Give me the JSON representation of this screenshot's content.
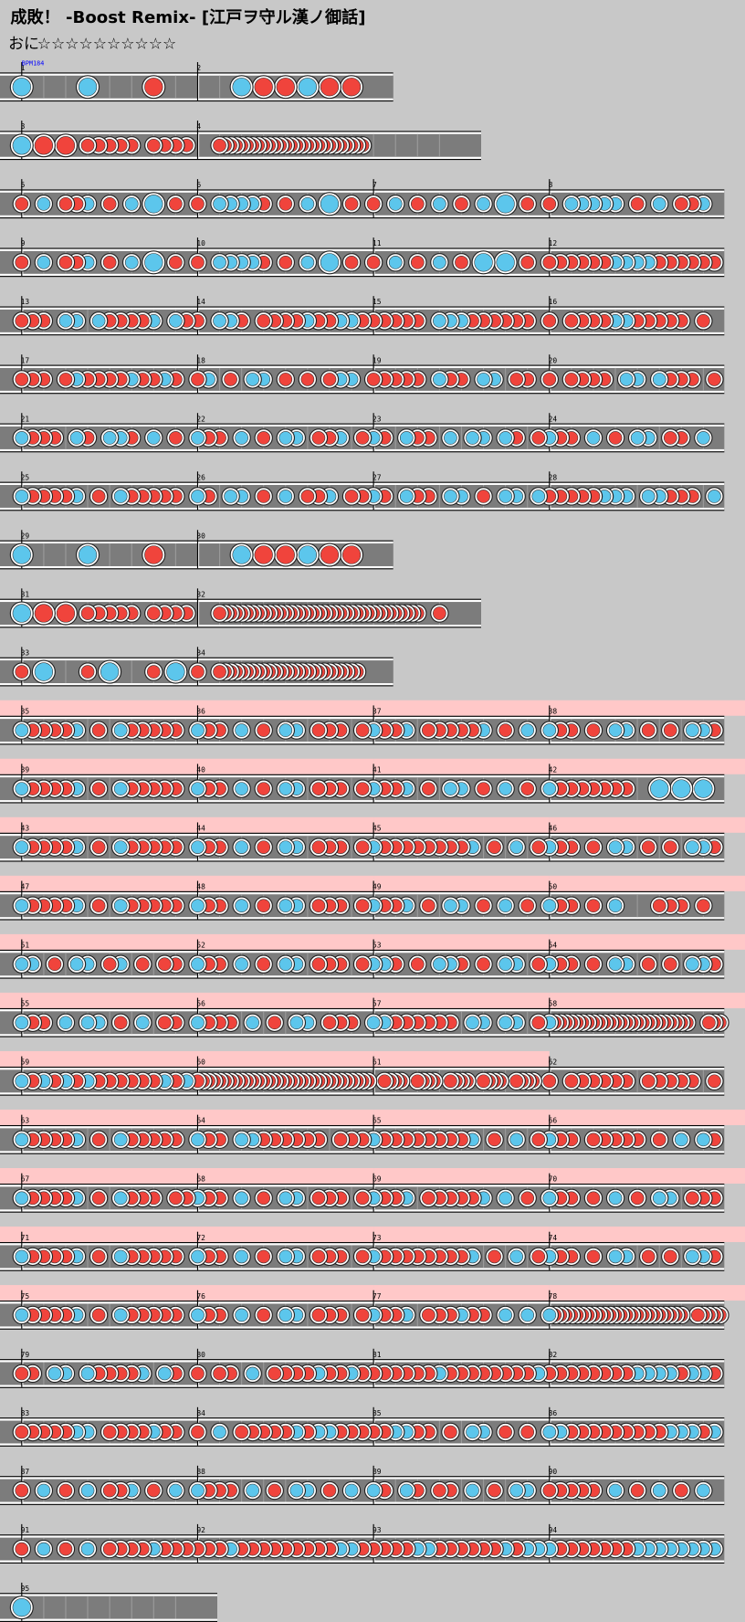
{
  "header": {
    "title": "成敗！ -Boost Remix- [江戸ヲ守ル漢ノ御話]",
    "course": "おに",
    "stars": "☆☆☆☆☆☆☆☆☆☆"
  },
  "rows": [
    {
      "measures": [
        {
          "number": "1",
          "bpm": "BPM184",
          "notes": "K..K..O."
        },
        {
          "number": "2",
          "notes": "..KOOKOO"
        }
      ]
    },
    {
      "measures": [
        {
          "number": "3",
          "notes": "K.O.O.ooooo.oooo"
        },
        {
          "number": "4",
          "beats": 6,
          "notes": "....ooooooooooooooooooooooooooo................."
        }
      ]
    },
    {
      "measures": [
        {
          "number": "5",
          "notes": "o.k.ook.o.k.K.o."
        },
        {
          "number": "6",
          "notes": "o.kkkko.o.k.K.o."
        },
        {
          "number": "7",
          "notes": "o.k.o.k.o.k.K.o."
        },
        {
          "number": "8",
          "notes": "o.kkkkk.o.k.ook."
        }
      ]
    },
    {
      "measures": [
        {
          "number": "9",
          "notes": "o.k.ook.o.k.K.o."
        },
        {
          "number": "10",
          "notes": "o.kkkko.o.k.K.o."
        },
        {
          "number": "11",
          "notes": "o.k.o.k.o.K.K.o."
        },
        {
          "number": "12",
          "notes": "ooooookkkkoooooo"
        }
      ]
    },
    {
      "measures": [
        {
          "number": "13",
          "notes": "ooo.kk.kooook.ko"
        },
        {
          "number": "14",
          "notes": "o.kko.ooookookko"
        },
        {
          "number": "15",
          "notes": "ooooo.kkkoooooo."
        },
        {
          "number": "16",
          "notes": "o.ooookkooooo.o."
        }
      ]
    },
    {
      "measures": [
        {
          "number": "17",
          "notes": "ooo.okooookooko."
        },
        {
          "number": "18",
          "notes": "ok.o.kk.o.o.okk."
        },
        {
          "number": "19",
          "notes": "ooooo.koo.kk.oo."
        },
        {
          "number": "20",
          "notes": "o.oooo.kk.kooo.o"
        }
      ]
    },
    {
      "measures": [
        {
          "number": "21",
          "notes": "kooo.ko.kko.k.o."
        },
        {
          "number": "22",
          "notes": "koo.k.o.kk.ook.o"
        },
        {
          "number": "23",
          "notes": "ko.koo.k.kk.ko.o"
        },
        {
          "number": "24",
          "notes": "koo.k.o.kk.oo.k."
        }
      ]
    },
    {
      "measures": [
        {
          "number": "25",
          "notes": "kooook.o.kooooo."
        },
        {
          "number": "26",
          "notes": "ko.kk.o.k.ook.oo"
        },
        {
          "number": "27",
          "notes": "ko.koo.kk.o.kk.k"
        },
        {
          "number": "28",
          "notes": "oooookkk.kkooo.k"
        }
      ]
    },
    {
      "measures": [
        {
          "number": "29",
          "notes": "K..K..O."
        },
        {
          "number": "30",
          "notes": "..KOOKOO"
        }
      ]
    },
    {
      "measures": [
        {
          "number": "31",
          "notes": "K.O.O.ooooo.oooo"
        },
        {
          "number": "32",
          "beats": 6,
          "notes": "....ooooooooooooooooooooooooooooooooooooo...o..."
        }
      ]
    },
    {
      "measures": [
        {
          "number": "33",
          "notes": "o.K...o.K...o.K."
        },
        {
          "number": "34",
          "notes": "o...oooooooooooooooooooooooooo.."
        }
      ]
    },
    {
      "measures": [
        {
          "number": "35",
          "gogo": true,
          "notes": "kooook.o.kooooo."
        },
        {
          "number": "36",
          "gogo": true,
          "notes": "koo.k.o.kk.ooo.o"
        },
        {
          "number": "37",
          "gogo": true,
          "notes": "kook.oooook.o.k."
        },
        {
          "number": "38",
          "gogo": true,
          "notes": "koo.o.kk.o.o.kko"
        }
      ]
    },
    {
      "measures": [
        {
          "number": "39",
          "gogo": true,
          "notes": "kooook.o.kooooo."
        },
        {
          "number": "40",
          "gogo": true,
          "notes": "koo.k.o.kk.ooo.o"
        },
        {
          "number": "41",
          "gogo": true,
          "notes": "kook.o.kk.o.k.o."
        },
        {
          "number": "42",
          "gogo": true,
          "notes": "kooooooo..K.K.K."
        }
      ]
    },
    {
      "measures": [
        {
          "number": "43",
          "gogo": true,
          "notes": "kooook.o.kooooo."
        },
        {
          "number": "44",
          "gogo": true,
          "notes": "koo.k.o.kk.ooo.o"
        },
        {
          "number": "45",
          "gogo": true,
          "notes": "kooooooook.o.k.o"
        },
        {
          "number": "46",
          "gogo": true,
          "notes": "koo.o.kk.o.o.kko"
        }
      ]
    },
    {
      "measures": [
        {
          "number": "47",
          "gogo": true,
          "notes": "kooook.o.kooooo."
        },
        {
          "number": "48",
          "gogo": true,
          "notes": "koo.k.o.kk.ooo.o"
        },
        {
          "number": "49",
          "gogo": true,
          "notes": "kook.o.kk.o.k.o."
        },
        {
          "number": "50",
          "gogo": true,
          "notes": "koo.o.k...ooo.o."
        }
      ]
    },
    {
      "measures": [
        {
          "number": "51",
          "gogo": true,
          "notes": "kk.o.kk.ok.o.oo."
        },
        {
          "number": "52",
          "gogo": true,
          "notes": "koo.k.o.kk.ooo.o"
        },
        {
          "number": "53",
          "gogo": true,
          "notes": "kko.o.kko.o.kk.o"
        },
        {
          "number": "54",
          "gogo": true,
          "notes": "koo.o.kk.o.o.kko"
        }
      ]
    },
    {
      "measures": [
        {
          "number": "55",
          "gogo": true,
          "notes": "koo.k.kk.o.k.oo."
        },
        {
          "number": "56",
          "gogo": true,
          "notes": "kooo.k.o.kk.ooo."
        },
        {
          "number": "57",
          "gogo": true,
          "notes": "kkoooooo.kk.kk.o"
        },
        {
          "number": "58",
          "gogo": true,
          "notes": "kooooooooooooooooooooooooo...ooo"
        }
      ]
    },
    {
      "measures": [
        {
          "number": "59",
          "gogo": true,
          "notes": "kokokokooooookok"
        },
        {
          "number": "60",
          "gogo": true,
          "notes": "oooooooooooooooooooooooooooooooo"
        },
        {
          "number": "61",
          "gogo": true,
          "notes": "..oooo..oooo..oooo..oooo..oooo.."
        },
        {
          "number": "62",
          "notes": "o.oooooo.ooooo.o"
        }
      ]
    },
    {
      "measures": [
        {
          "number": "63",
          "gogo": true,
          "notes": "kooook.o.kooooo."
        },
        {
          "number": "64",
          "gogo": true,
          "notes": "koo.kkoooooo.ooo"
        },
        {
          "number": "65",
          "gogo": true,
          "notes": "kooooooook.o.k.o"
        },
        {
          "number": "66",
          "gogo": true,
          "notes": "koo.ooooo.o.k.ko"
        }
      ]
    },
    {
      "measures": [
        {
          "number": "67",
          "gogo": true,
          "notes": "kooook.o.kooo.oo"
        },
        {
          "number": "68",
          "gogo": true,
          "notes": "koo.k.o.kk.ooo.o"
        },
        {
          "number": "69",
          "gogo": true,
          "notes": "kook.oooook.k.o."
        },
        {
          "number": "70",
          "gogo": true,
          "notes": "koo.o.k.o.kk.ooo"
        }
      ]
    },
    {
      "measures": [
        {
          "number": "71",
          "gogo": true,
          "notes": "kooook.o.kooooo."
        },
        {
          "number": "72",
          "gogo": true,
          "notes": "koo.k.o.kk.ooo.o"
        },
        {
          "number": "73",
          "gogo": true,
          "notes": "kooooooook.o.k.o"
        },
        {
          "number": "74",
          "gogo": true,
          "notes": "koo.o.kk.o.o.kko"
        }
      ]
    },
    {
      "measures": [
        {
          "number": "75",
          "gogo": true,
          "notes": "kooook.o.kooooo."
        },
        {
          "number": "76",
          "gogo": true,
          "notes": "koo.k.o.kk.ooo.o"
        },
        {
          "number": "77",
          "gogo": true,
          "notes": "kook.oookoo.k.k."
        },
        {
          "number": "78",
          "gogo": true,
          "notes": "koooooooooooooooooooooooo..ooooo"
        }
      ]
    },
    {
      "measures": [
        {
          "number": "79",
          "notes": "oo.kk.kooook.ko."
        },
        {
          "number": "80",
          "notes": "o.oo.k.ooookooko"
        },
        {
          "number": "81",
          "notes": "ooooookooooooook"
        },
        {
          "number": "82",
          "notes": "ooooooookkkkokko"
        }
      ]
    },
    {
      "measures": [
        {
          "number": "83",
          "notes": "oooookk.ooookoo."
        },
        {
          "number": "84",
          "notes": "o.k.oooookokkooo"
        },
        {
          "number": "85",
          "notes": "ookkoo.o.kk.o.o."
        },
        {
          "number": "86",
          "notes": "kkoooooooookkkok"
        }
      ]
    },
    {
      "measures": [
        {
          "number": "87",
          "notes": "o.k.o.k.ook.o.k."
        },
        {
          "number": "88",
          "notes": "kooo.k.o.kk.o.k."
        },
        {
          "number": "89",
          "notes": "ko.ko.oo.k.o.kk."
        },
        {
          "number": "90",
          "notes": "ooooo.k.o.k.o.k."
        }
      ]
    },
    {
      "measures": [
        {
          "number": "91",
          "notes": "o.k.o.k.ooookooo"
        },
        {
          "number": "92",
          "notes": "oookoooooooookko"
        },
        {
          "number": "93",
          "notes": "ooookkooooookokk"
        },
        {
          "number": "94",
          "notes": "koooooookkkkkkkk"
        }
      ]
    },
    {
      "measures": [
        {
          "number": "95",
          "notes": "K......."
        }
      ]
    }
  ]
}
